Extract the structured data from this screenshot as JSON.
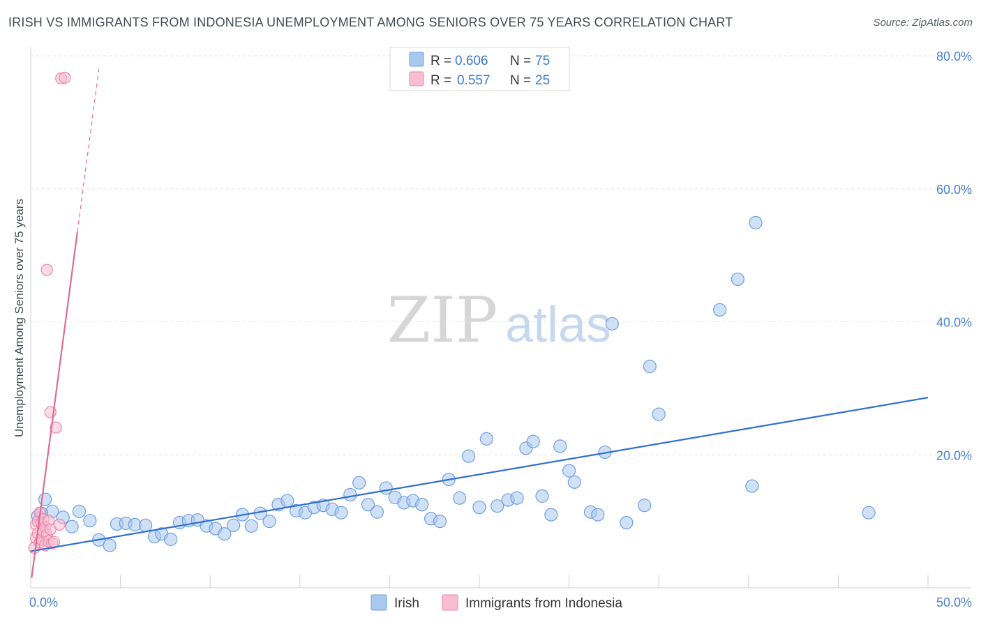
{
  "title": "IRISH VS IMMIGRANTS FROM INDONESIA UNEMPLOYMENT AMONG SENIORS OVER 75 YEARS CORRELATION CHART",
  "source": "Source: ZipAtlas.com",
  "watermark": {
    "zip": "ZIP",
    "atlas": "atlas"
  },
  "legend": {
    "r_label": "R =",
    "n_label": "N =",
    "series": [
      {
        "name": "Irish",
        "r": "0.606",
        "n": "75",
        "color": "#a9c8f0",
        "stroke": "#6f9fdc"
      },
      {
        "name": "Immigrants from Indonesia",
        "r": "0.557",
        "n": "25",
        "color": "#f8bdd0",
        "stroke": "#ec86a8"
      }
    ]
  },
  "chart_data": {
    "type": "scatter",
    "title": "IRISH VS IMMIGRANTS FROM INDONESIA UNEMPLOYMENT AMONG SENIORS OVER 75 YEARS CORRELATION CHART",
    "xlabel": "",
    "ylabel": "Unemployment Among Seniors over 75 years",
    "xlim": [
      0,
      50
    ],
    "ylim": [
      0,
      80
    ],
    "x_tick_labels": [
      "0.0%",
      "50.0%"
    ],
    "y_ticks": [
      20,
      40,
      60,
      80
    ],
    "y_tick_labels": [
      "20.0%",
      "40.0%",
      "60.0%",
      "80.0%"
    ],
    "grid": true,
    "legend_position": "top-center",
    "series": [
      {
        "name": "Irish",
        "color": "#a9c8f0",
        "stroke": "#6f9fdc",
        "trend": {
          "x": [
            0,
            50
          ],
          "y": [
            5.5,
            28.6
          ],
          "color": "#2f6fd0"
        },
        "points": [
          [
            0.4,
            10.8
          ],
          [
            0.8,
            13.3
          ],
          [
            1.2,
            11.5
          ],
          [
            1.8,
            10.6
          ],
          [
            2.3,
            9.2
          ],
          [
            2.7,
            11.5
          ],
          [
            3.3,
            10.1
          ],
          [
            3.8,
            7.2
          ],
          [
            4.4,
            6.4
          ],
          [
            4.8,
            9.6
          ],
          [
            5.3,
            9.7
          ],
          [
            5.8,
            9.5
          ],
          [
            6.4,
            9.4
          ],
          [
            6.9,
            7.7
          ],
          [
            7.3,
            8.1
          ],
          [
            7.8,
            7.3
          ],
          [
            8.3,
            9.8
          ],
          [
            8.8,
            10.1
          ],
          [
            9.3,
            10.2
          ],
          [
            9.8,
            9.3
          ],
          [
            10.3,
            8.9
          ],
          [
            10.8,
            8.1
          ],
          [
            11.3,
            9.4
          ],
          [
            11.8,
            11.0
          ],
          [
            12.3,
            9.3
          ],
          [
            12.8,
            11.2
          ],
          [
            13.3,
            10.0
          ],
          [
            13.8,
            12.5
          ],
          [
            14.3,
            13.1
          ],
          [
            14.8,
            11.6
          ],
          [
            15.3,
            11.3
          ],
          [
            15.8,
            12.1
          ],
          [
            16.3,
            12.4
          ],
          [
            16.8,
            11.8
          ],
          [
            17.3,
            11.3
          ],
          [
            17.8,
            14.0
          ],
          [
            18.3,
            15.8
          ],
          [
            18.8,
            12.5
          ],
          [
            19.3,
            11.4
          ],
          [
            19.8,
            15.0
          ],
          [
            20.3,
            13.6
          ],
          [
            20.8,
            12.8
          ],
          [
            21.3,
            13.1
          ],
          [
            21.8,
            12.5
          ],
          [
            22.3,
            10.4
          ],
          [
            22.8,
            10.0
          ],
          [
            23.3,
            16.3
          ],
          [
            23.9,
            13.5
          ],
          [
            24.4,
            19.8
          ],
          [
            25.0,
            12.1
          ],
          [
            25.4,
            22.4
          ],
          [
            26.0,
            12.3
          ],
          [
            26.6,
            13.2
          ],
          [
            27.1,
            13.5
          ],
          [
            27.6,
            21.0
          ],
          [
            28.0,
            22.0
          ],
          [
            28.5,
            13.8
          ],
          [
            29.0,
            11.0
          ],
          [
            29.5,
            21.3
          ],
          [
            30.0,
            17.6
          ],
          [
            30.3,
            15.9
          ],
          [
            31.2,
            11.4
          ],
          [
            31.6,
            11.0
          ],
          [
            32.0,
            20.4
          ],
          [
            32.4,
            39.7
          ],
          [
            33.2,
            9.8
          ],
          [
            34.2,
            12.4
          ],
          [
            34.5,
            33.3
          ],
          [
            35.0,
            26.1
          ],
          [
            38.4,
            41.8
          ],
          [
            39.4,
            46.4
          ],
          [
            40.2,
            15.3
          ],
          [
            40.4,
            54.9
          ],
          [
            46.7,
            11.3
          ],
          [
            0.6,
            11.2
          ]
        ]
      },
      {
        "name": "Immigrants from Indonesia",
        "color": "#f8bdd0",
        "stroke": "#ec86a8",
        "trend": {
          "x": [
            0.05,
            2.6
          ],
          "y": [
            1.5,
            53.5
          ],
          "color": "#e26a95"
        },
        "trend_ext": {
          "x": [
            2.6,
            3.8
          ],
          "y": [
            53.5,
            78.0
          ]
        },
        "points": [
          [
            0.2,
            6.0
          ],
          [
            0.3,
            9.5
          ],
          [
            0.3,
            7.5
          ],
          [
            0.4,
            10.0
          ],
          [
            0.4,
            8.2
          ],
          [
            0.5,
            6.8
          ],
          [
            0.5,
            11.3
          ],
          [
            0.6,
            9.8
          ],
          [
            0.6,
            7.2
          ],
          [
            0.7,
            8.5
          ],
          [
            0.7,
            10.3
          ],
          [
            0.8,
            6.4
          ],
          [
            0.8,
            9.1
          ],
          [
            0.9,
            8.0
          ],
          [
            1.0,
            7.0
          ],
          [
            1.0,
            10.1
          ],
          [
            1.1,
            8.8
          ],
          [
            1.2,
            6.7
          ],
          [
            1.3,
            6.9
          ],
          [
            0.9,
            47.8
          ],
          [
            1.1,
            26.4
          ],
          [
            1.4,
            24.1
          ],
          [
            1.6,
            9.5
          ],
          [
            1.7,
            76.6
          ],
          [
            1.9,
            76.7
          ]
        ]
      }
    ]
  }
}
